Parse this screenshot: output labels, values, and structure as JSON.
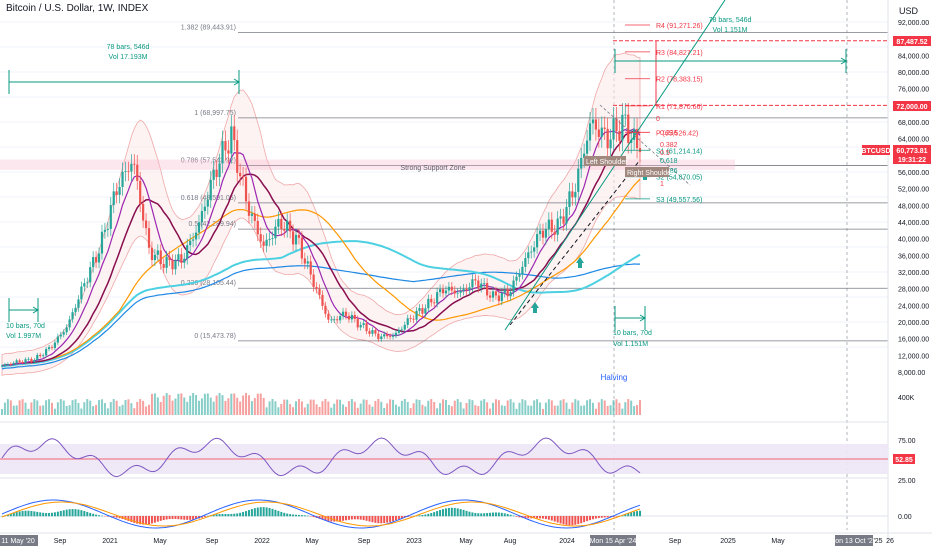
{
  "header": {
    "title": "Bitcoin / U.S. Dollar, 1W, INDEX",
    "currency": "USD"
  },
  "chart_data": {
    "type": "candlestick",
    "symbol": "BTCUSD",
    "timeframe": "1W",
    "price_axis": {
      "ticks": [
        "92,000.00",
        "88,000.00",
        "84,000.00",
        "80,000.00",
        "76,000.00",
        "68,000.00",
        "64,000.00",
        "56,000.00",
        "52,000.00",
        "48,000.00",
        "44,000.00",
        "40,000.00",
        "36,000.00",
        "32,000.00",
        "28,000.00",
        "24,000.00",
        "20,000.00",
        "16,000.00",
        "12,000.00",
        "8,000.00"
      ],
      "range": [
        5000,
        96000
      ]
    },
    "price_markers": [
      {
        "label": "87,487.52",
        "value": 87487.52,
        "color": "#f23645"
      },
      {
        "label": "72,000.00",
        "value": 72000,
        "color": "#f23645"
      },
      {
        "label": "BTCUSD",
        "value": 61800,
        "color": "#f23645"
      },
      {
        "label": "60,773.81",
        "value": 60773.81,
        "color": "#f23645"
      },
      {
        "label": "19:31:22",
        "value": 59200,
        "color": "#f23645"
      }
    ],
    "time_axis": {
      "ticks": [
        "11 May '20",
        "Sep",
        "2021",
        "May",
        "Sep",
        "2022",
        "May",
        "Sep",
        "2023",
        "May",
        "Aug",
        "2024",
        "Mon 15 Apr '24",
        "Sep",
        "2025",
        "May",
        "Mon 13 Oct '25",
        "'25",
        "26"
      ]
    },
    "price_series": {
      "name": "BTCUSD",
      "dates": [
        "2020-05",
        "2020-07",
        "2020-09",
        "2020-11",
        "2020-12",
        "2021-01",
        "2021-02",
        "2021-03",
        "2021-04",
        "2021-05",
        "2021-06",
        "2021-07",
        "2021-09",
        "2021-10",
        "2021-11",
        "2021-12",
        "2022-01",
        "2022-03",
        "2022-04",
        "2022-05",
        "2022-06",
        "2022-08",
        "2022-09",
        "2022-11",
        "2022-12",
        "2023-01",
        "2023-03",
        "2023-04",
        "2023-06",
        "2023-07",
        "2023-09",
        "2023-10",
        "2023-11",
        "2023-12",
        "2024-01",
        "2024-02",
        "2024-03",
        "2024-04",
        "2024-05",
        "2024-06"
      ],
      "values": [
        9500,
        10500,
        11000,
        14000,
        19000,
        29000,
        38000,
        52000,
        59000,
        37000,
        34000,
        35000,
        43000,
        56000,
        65000,
        48000,
        38000,
        44000,
        40000,
        30000,
        20000,
        22000,
        19000,
        16500,
        16800,
        21000,
        24000,
        28000,
        27000,
        30000,
        26000,
        27000,
        35000,
        42000,
        43000,
        52000,
        68000,
        64000,
        68000,
        60773.81
      ]
    },
    "annotations": [
      {
        "text": "Strong Support Zone"
      },
      {
        "text": "Left Shoulder"
      },
      {
        "text": "Right Shoulder"
      },
      {
        "text": "Halving"
      },
      {
        "text": "1.382 (89,443.91)"
      },
      {
        "text": "1 (68,997.75)"
      },
      {
        "text": "0.786 (57,543.92)"
      },
      {
        "text": "0.618 (48,591.05)"
      },
      {
        "text": "0.5 (42,289.94)"
      },
      {
        "text": "0.236 (28,105.44)"
      },
      {
        "text": "0 (15,473.78)"
      },
      {
        "text": "R4 (91,271.26)"
      },
      {
        "text": "R3 (84,827.21)"
      },
      {
        "text": "R2 (78,383.15)"
      },
      {
        "text": "R1 (71,870.66)"
      },
      {
        "text": "P (65,526.42)"
      },
      {
        "text": "S1 (61,214.14)"
      },
      {
        "text": "S2 (54,870.05)"
      },
      {
        "text": "S3 (49,557.56)"
      },
      {
        "text": "0.236"
      },
      {
        "text": "0.382"
      },
      {
        "text": "0.5"
      },
      {
        "text": "0.618"
      },
      {
        "text": "0.786"
      },
      {
        "text": "0"
      },
      {
        "text": "1"
      },
      {
        "text": "78 bars, 546d"
      },
      {
        "text": "Vol 17.193M"
      },
      {
        "text": "78 bars, 546d"
      },
      {
        "text": "Vol 1.151M"
      },
      {
        "text": "10 bars, 70d"
      },
      {
        "text": "Vol 1.997M"
      },
      {
        "text": "10 bars, 70d"
      },
      {
        "text": "Vol 1.151M"
      }
    ],
    "volume_axis": {
      "ticks": [
        "400K"
      ]
    },
    "rsi": {
      "value_label": "52.85",
      "ticks": [
        "75.00",
        "50.00",
        "25.00"
      ]
    },
    "macd": {
      "ticks": [
        "0.00"
      ]
    },
    "colors": {
      "up": "#26a69a",
      "down": "#ef5350",
      "ma_short": "#9c27b0",
      "ma_mid": "#880e4f",
      "ma_long": "#ff9800",
      "ma_200": "#1e88e5",
      "ma_cyan": "#4dd0e1",
      "green": "#089981",
      "red": "#f23645"
    }
  }
}
